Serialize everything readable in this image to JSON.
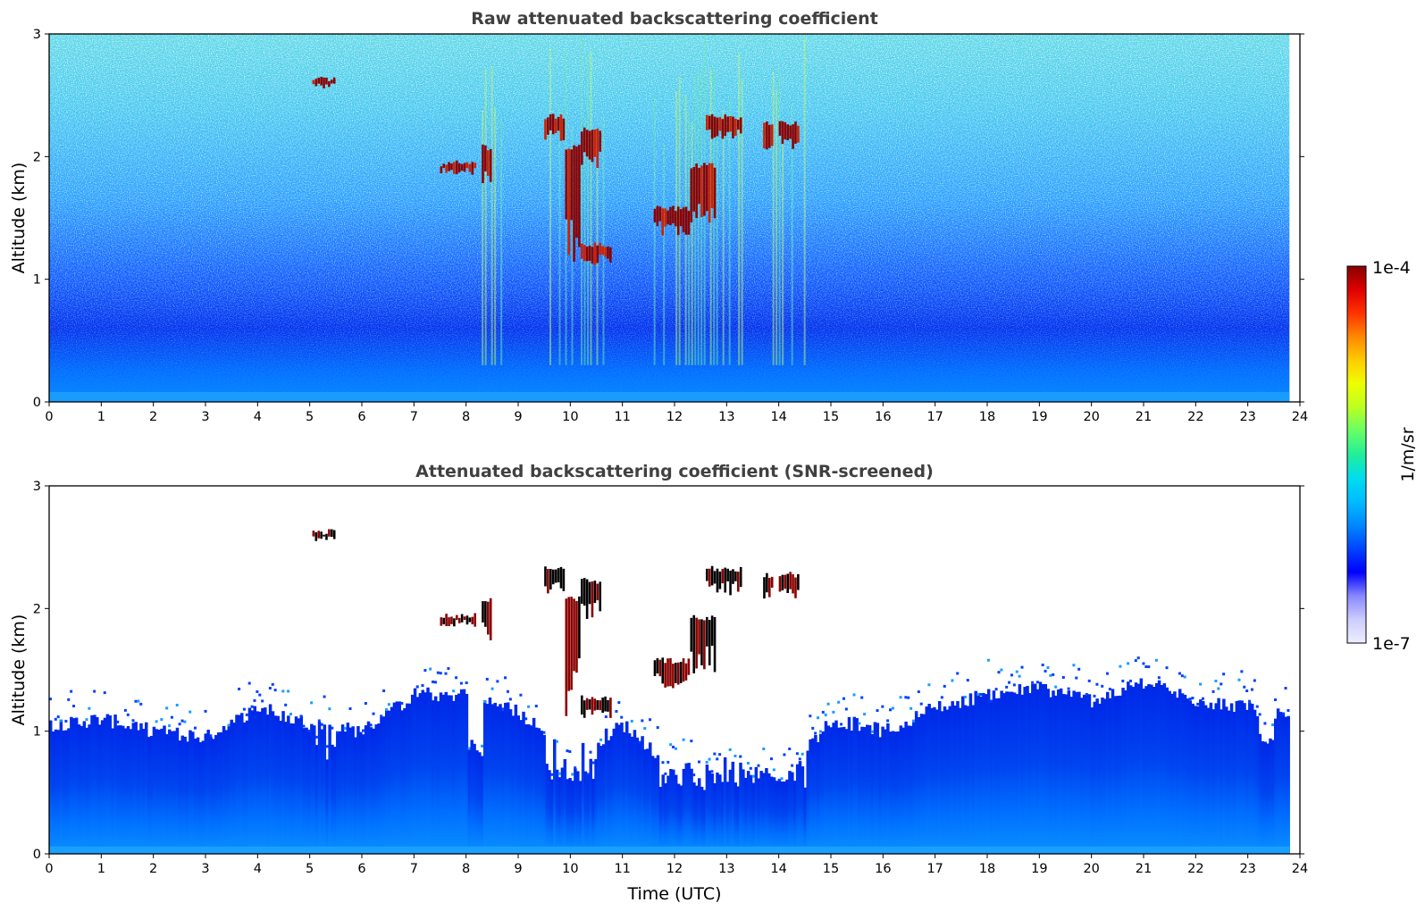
{
  "chart_data": [
    {
      "type": "heatmap",
      "title": "Raw attenuated backscattering coefficient",
      "xlabel": "",
      "ylabel": "Altitude (km)",
      "xlim": [
        0,
        24
      ],
      "ylim": [
        0,
        3
      ],
      "x_ticks": [
        "0",
        "1",
        "2",
        "3",
        "4",
        "5",
        "6",
        "7",
        "8",
        "9",
        "10",
        "11",
        "12",
        "13",
        "14",
        "15",
        "16",
        "17",
        "18",
        "19",
        "20",
        "21",
        "22",
        "23",
        "24"
      ],
      "y_ticks": [
        "0",
        "1",
        "2",
        "3"
      ],
      "scale": "log",
      "data_end_time": 23.8,
      "noise_top_km": 3,
      "boundary_layer_top_km": [
        [
          0,
          0.75
        ],
        [
          6,
          0.7
        ],
        [
          12,
          0.6
        ],
        [
          18,
          0.7
        ],
        [
          23.8,
          0.75
        ]
      ],
      "precipitation_streaks": [
        [
          8.3,
          8.7
        ],
        [
          9.6,
          10.8
        ],
        [
          11.6,
          13.3
        ],
        [
          13.7,
          14.5
        ]
      ],
      "clouds": [
        {
          "t0": 5.05,
          "t1": 5.5,
          "z0": 2.55,
          "z1": 2.65
        },
        {
          "t0": 7.5,
          "t1": 8.2,
          "z0": 1.85,
          "z1": 1.97
        },
        {
          "t0": 8.3,
          "t1": 8.5,
          "z0": 1.7,
          "z1": 2.1
        },
        {
          "t0": 9.5,
          "t1": 9.9,
          "z0": 2.1,
          "z1": 2.35
        },
        {
          "t0": 9.9,
          "t1": 10.2,
          "z0": 1.1,
          "z1": 2.1
        },
        {
          "t0": 10.2,
          "t1": 10.6,
          "z0": 1.9,
          "z1": 2.25
        },
        {
          "t0": 10.2,
          "t1": 10.8,
          "z0": 1.1,
          "z1": 1.3
        },
        {
          "t0": 11.6,
          "t1": 12.3,
          "z0": 1.35,
          "z1": 1.6
        },
        {
          "t0": 12.3,
          "t1": 12.8,
          "z0": 1.45,
          "z1": 1.95
        },
        {
          "t0": 12.6,
          "t1": 13.3,
          "z0": 2.1,
          "z1": 2.35
        },
        {
          "t0": 13.7,
          "t1": 13.9,
          "z0": 2.05,
          "z1": 2.3
        },
        {
          "t0": 14.0,
          "t1": 14.4,
          "z0": 2.05,
          "z1": 2.3
        }
      ]
    },
    {
      "type": "heatmap",
      "title": "Attenuated backscattering coefficient (SNR-screened)",
      "xlabel": "Time (UTC)",
      "ylabel": "Altitude (km)",
      "xlim": [
        0,
        24
      ],
      "ylim": [
        0,
        3
      ],
      "x_ticks": [
        "0",
        "1",
        "2",
        "3",
        "4",
        "5",
        "6",
        "7",
        "8",
        "9",
        "10",
        "11",
        "12",
        "13",
        "14",
        "15",
        "16",
        "17",
        "18",
        "19",
        "20",
        "21",
        "22",
        "23",
        "24"
      ],
      "y_ticks": [
        "0",
        "1",
        "2",
        "3"
      ],
      "scale": "log",
      "data_end_time": 23.8,
      "signal_top_km": [
        [
          0,
          1.05
        ],
        [
          1,
          1.1
        ],
        [
          2,
          1.0
        ],
        [
          3,
          0.95
        ],
        [
          4,
          1.2
        ],
        [
          5,
          1.05
        ],
        [
          6,
          1.0
        ],
        [
          7,
          1.3
        ],
        [
          8,
          1.3
        ],
        [
          9,
          1.15
        ],
        [
          10,
          0.8
        ],
        [
          11,
          1.05
        ],
        [
          12,
          0.7
        ],
        [
          13,
          0.75
        ],
        [
          14,
          0.6
        ],
        [
          15,
          1.1
        ],
        [
          16,
          1.0
        ],
        [
          17,
          1.2
        ],
        [
          18,
          1.3
        ],
        [
          19,
          1.35
        ],
        [
          20,
          1.25
        ],
        [
          21,
          1.4
        ],
        [
          22,
          1.25
        ],
        [
          23,
          1.2
        ],
        [
          23.8,
          1.1
        ]
      ],
      "gaps": [
        {
          "t0": 5.1,
          "t1": 5.5,
          "z_bottom": 0.8
        },
        {
          "t0": 8.0,
          "t1": 8.3,
          "z_bottom": 0.8
        },
        {
          "t0": 9.5,
          "t1": 10.5,
          "z_bottom": 0.65
        },
        {
          "t0": 11.7,
          "t1": 12.1,
          "z_bottom": 0.6
        },
        {
          "t0": 12.3,
          "t1": 13.0,
          "z_bottom": 0.55
        },
        {
          "t0": 13.1,
          "t1": 13.6,
          "z_bottom": 0.55
        },
        {
          "t0": 13.8,
          "t1": 14.5,
          "z_bottom": 0.6
        },
        {
          "t0": 23.2,
          "t1": 23.5,
          "z_bottom": 0.85
        }
      ],
      "clouds": [
        {
          "t0": 5.05,
          "t1": 5.5,
          "z0": 2.55,
          "z1": 2.65
        },
        {
          "t0": 7.5,
          "t1": 8.2,
          "z0": 1.85,
          "z1": 1.97
        },
        {
          "t0": 8.3,
          "t1": 8.5,
          "z0": 1.7,
          "z1": 2.1
        },
        {
          "t0": 9.5,
          "t1": 9.9,
          "z0": 2.1,
          "z1": 2.35
        },
        {
          "t0": 9.9,
          "t1": 10.2,
          "z0": 1.1,
          "z1": 2.1
        },
        {
          "t0": 10.2,
          "t1": 10.6,
          "z0": 1.9,
          "z1": 2.25
        },
        {
          "t0": 10.2,
          "t1": 10.8,
          "z0": 1.1,
          "z1": 1.3
        },
        {
          "t0": 11.6,
          "t1": 12.3,
          "z0": 1.35,
          "z1": 1.6
        },
        {
          "t0": 12.3,
          "t1": 12.8,
          "z0": 1.45,
          "z1": 1.95
        },
        {
          "t0": 12.6,
          "t1": 13.3,
          "z0": 2.1,
          "z1": 2.35
        },
        {
          "t0": 13.7,
          "t1": 13.9,
          "z0": 2.05,
          "z1": 2.3
        },
        {
          "t0": 14.0,
          "t1": 14.4,
          "z0": 2.05,
          "z1": 2.3
        }
      ]
    }
  ],
  "colorbar": {
    "label": "1/m/sr",
    "max_label": "1e-4",
    "min_label": "1e-7",
    "colormap": [
      "#eeeeff",
      "#ccccff",
      "#8888ff",
      "#0000ff",
      "#0044ff",
      "#0088ff",
      "#00bbff",
      "#00ddee",
      "#22ee99",
      "#66ff66",
      "#bbff22",
      "#eeff00",
      "#ffcc00",
      "#ff8800",
      "#ff3300",
      "#dd0000",
      "#880000"
    ],
    "cloud_color": "#8b0000",
    "cloud_edge_color": "#000000"
  }
}
